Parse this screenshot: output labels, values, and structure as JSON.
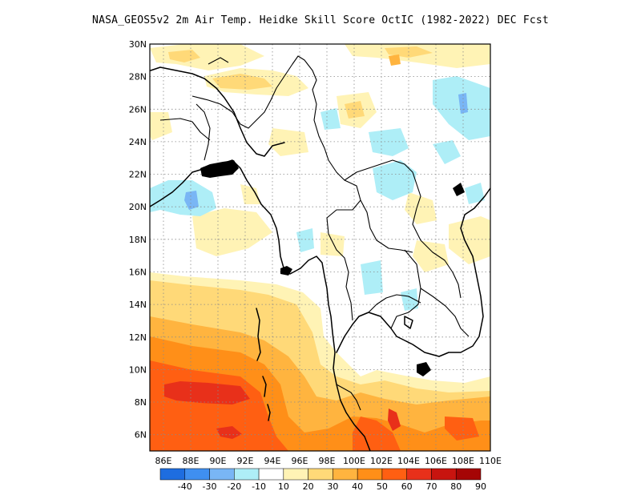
{
  "title": "NASA_GEOS5v2  2m Air Temp. Heidke Skill Score OctIC (1982-2022) DEC Fcst",
  "map": {
    "lon_range": [
      85,
      110
    ],
    "lat_range": [
      5,
      30
    ],
    "lon_ticks": [
      "86E",
      "88E",
      "90E",
      "92E",
      "94E",
      "96E",
      "98E",
      "100E",
      "102E",
      "104E",
      "106E",
      "108E",
      "110E"
    ],
    "lat_ticks": [
      "6N",
      "8N",
      "10N",
      "12N",
      "14N",
      "16N",
      "18N",
      "20N",
      "22N",
      "24N",
      "26N",
      "28N",
      "30N"
    ],
    "gridlines": "dotted"
  },
  "colorbar": {
    "colors": [
      "#1e6de0",
      "#3f8ff0",
      "#79b6f5",
      "#aeeef7",
      "#ffffff",
      "#fff3b5",
      "#ffd978",
      "#ffb43f",
      "#ff8f18",
      "#ff5f12",
      "#e8301a",
      "#c8140f",
      "#a50505"
    ],
    "labels": [
      "-40",
      "-30",
      "-20",
      "-10",
      "10",
      "20",
      "30",
      "40",
      "50",
      "60",
      "70",
      "80",
      "90"
    ]
  }
}
